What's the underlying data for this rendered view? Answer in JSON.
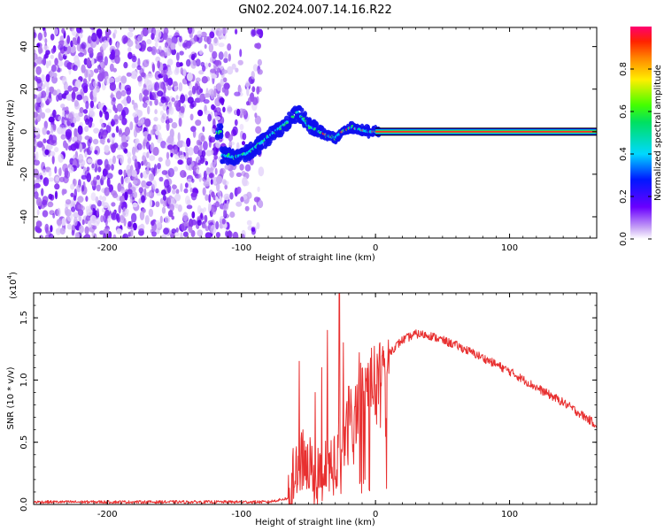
{
  "title": "GN02.2024.007.14.16.R22",
  "chart_data": [
    {
      "type": "heatmap",
      "xlabel": "Height of straight line (km)",
      "ylabel": "Frequency (Hz)",
      "xlim": [
        -255,
        165
      ],
      "ylim": [
        -50,
        49
      ],
      "x_ticks": [
        -200,
        -100,
        0,
        100
      ],
      "y_ticks": [
        -40,
        -20,
        0,
        20,
        40
      ],
      "grid": false,
      "colorbar": {
        "label": "Normalized spectral amplitude",
        "range": [
          0,
          1
        ],
        "ticks": [
          "0.0",
          "0.2",
          "0.4",
          "0.6",
          "0.8"
        ]
      },
      "features": {
        "noise_region_x": [
          -255,
          -85
        ],
        "signal_trace": [
          {
            "x": -115,
            "y": -11
          },
          {
            "x": -105,
            "y": -12
          },
          {
            "x": -95,
            "y": -10
          },
          {
            "x": -85,
            "y": -5
          },
          {
            "x": -75,
            "y": 0
          },
          {
            "x": -65,
            "y": 5
          },
          {
            "x": -58,
            "y": 9
          },
          {
            "x": -50,
            "y": 3
          },
          {
            "x": -42,
            "y": 0
          },
          {
            "x": -35,
            "y": -2
          },
          {
            "x": -30,
            "y": -3
          },
          {
            "x": -25,
            "y": 0
          },
          {
            "x": -18,
            "y": 2
          },
          {
            "x": -12,
            "y": 1
          },
          {
            "x": -5,
            "y": 0
          },
          {
            "x": 0,
            "y": 0
          },
          {
            "x": 165,
            "y": 0
          }
        ],
        "steady_line": {
          "x_start": 0,
          "x_end": 165,
          "y": 0
        }
      }
    },
    {
      "type": "line",
      "xlabel": "Height of straight line (km)",
      "ylabel": "SNR (10 * v/v)",
      "y_multiplier": "(x10",
      "y_multiplier_exp": "4",
      "y_multiplier_close": ")",
      "xlim": [
        -255,
        165
      ],
      "ylim": [
        0,
        1.7
      ],
      "x_ticks": [
        -200,
        -100,
        0,
        100
      ],
      "y_ticks": [
        "0.0",
        "0.5",
        "1.0",
        "1.5"
      ],
      "y_tick_values": [
        0,
        0.5,
        1.0,
        1.5
      ],
      "color": "#e83030",
      "series_envelope": [
        {
          "x": -255,
          "y": 0.02
        },
        {
          "x": -150,
          "y": 0.02
        },
        {
          "x": -80,
          "y": 0.02
        },
        {
          "x": -65,
          "y": 0.05
        },
        {
          "x": -58,
          "y": 0.3
        },
        {
          "x": -52,
          "y": 0.4
        },
        {
          "x": -45,
          "y": 0.2
        },
        {
          "x": -38,
          "y": 0.25
        },
        {
          "x": -30,
          "y": 0.35
        },
        {
          "x": -22,
          "y": 0.55
        },
        {
          "x": -15,
          "y": 0.75
        },
        {
          "x": -8,
          "y": 0.95
        },
        {
          "x": 0,
          "y": 1.05
        },
        {
          "x": 10,
          "y": 1.22
        },
        {
          "x": 20,
          "y": 1.32
        },
        {
          "x": 30,
          "y": 1.37
        },
        {
          "x": 40,
          "y": 1.36
        },
        {
          "x": 60,
          "y": 1.28
        },
        {
          "x": 80,
          "y": 1.18
        },
        {
          "x": 100,
          "y": 1.07
        },
        {
          "x": 120,
          "y": 0.94
        },
        {
          "x": 140,
          "y": 0.82
        },
        {
          "x": 165,
          "y": 0.64
        }
      ],
      "spikes": [
        {
          "x": -57,
          "y": 1.15
        },
        {
          "x": -54,
          "y": 0.6
        },
        {
          "x": -45,
          "y": 0.9
        },
        {
          "x": -40,
          "y": 1.1
        },
        {
          "x": -36,
          "y": 1.4
        },
        {
          "x": -27,
          "y": 1.7
        },
        {
          "x": -24,
          "y": 1.3
        },
        {
          "x": -20,
          "y": 0.95
        },
        {
          "x": -12,
          "y": 1.22
        },
        {
          "x": -5,
          "y": 1.0
        },
        {
          "x": 5,
          "y": 1.2
        }
      ]
    }
  ]
}
